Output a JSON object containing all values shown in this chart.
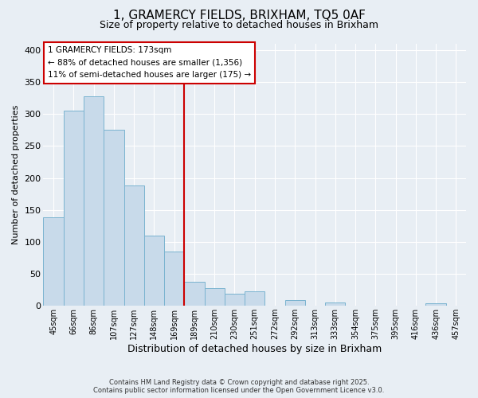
{
  "title": "1, GRAMERCY FIELDS, BRIXHAM, TQ5 0AF",
  "subtitle": "Size of property relative to detached houses in Brixham",
  "bar_labels": [
    "45sqm",
    "66sqm",
    "86sqm",
    "107sqm",
    "127sqm",
    "148sqm",
    "169sqm",
    "189sqm",
    "210sqm",
    "230sqm",
    "251sqm",
    "272sqm",
    "292sqm",
    "313sqm",
    "333sqm",
    "354sqm",
    "375sqm",
    "395sqm",
    "416sqm",
    "436sqm",
    "457sqm"
  ],
  "bar_heights": [
    138,
    305,
    328,
    275,
    188,
    110,
    85,
    38,
    27,
    19,
    23,
    0,
    9,
    0,
    5,
    0,
    0,
    0,
    0,
    4,
    0
  ],
  "bar_color": "#c8daea",
  "bar_edge_color": "#7ab3d0",
  "vline_index": 6.5,
  "vline_color": "#cc0000",
  "xlabel": "Distribution of detached houses by size in Brixham",
  "ylabel": "Number of detached properties",
  "ylim": [
    0,
    410
  ],
  "yticks": [
    0,
    50,
    100,
    150,
    200,
    250,
    300,
    350,
    400
  ],
  "annotation_title": "1 GRAMERCY FIELDS: 173sqm",
  "annotation_line1": "← 88% of detached houses are smaller (1,356)",
  "annotation_line2": "11% of semi-detached houses are larger (175) →",
  "annotation_box_edgecolor": "#cc0000",
  "footer1": "Contains HM Land Registry data © Crown copyright and database right 2025.",
  "footer2": "Contains public sector information licensed under the Open Government Licence v3.0.",
  "bg_color": "#e8eef4",
  "grid_color": "#ffffff",
  "title_fontsize": 11,
  "subtitle_fontsize": 9,
  "ylabel_fontsize": 8,
  "xlabel_fontsize": 9
}
